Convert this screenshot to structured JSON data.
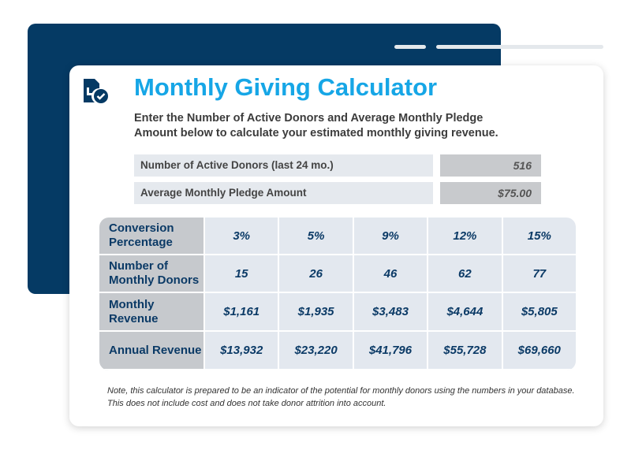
{
  "title": "Monthly Giving Calculator",
  "description": "Enter the Number of Active Donors and Average Monthly Pledge Amount below to calculate your estimated monthly giving revenue.",
  "inputs": [
    {
      "label": "Number of Active Donors (last 24 mo.)",
      "value": "516"
    },
    {
      "label": "Average Monthly Pledge Amount",
      "value": "$75.00"
    }
  ],
  "table": {
    "rows": [
      [
        "Conversion Percentage",
        "3%",
        "5%",
        "9%",
        "12%",
        "15%"
      ],
      [
        "Number of Monthly Donors",
        "15",
        "26",
        "46",
        "62",
        "77"
      ],
      [
        "Monthly Revenue",
        "$1,161",
        "$1,935",
        "$3,483",
        "$4,644",
        "$5,805"
      ],
      [
        "Annual Revenue",
        "$13,932",
        "$23,220",
        "$41,796",
        "$55,728",
        "$69,660"
      ]
    ]
  },
  "note": "Note, this calculator is prepared to be an indicator of the potential for monthly donors using the numbers in your database. This does not include cost and does not take donor attrition into account."
}
